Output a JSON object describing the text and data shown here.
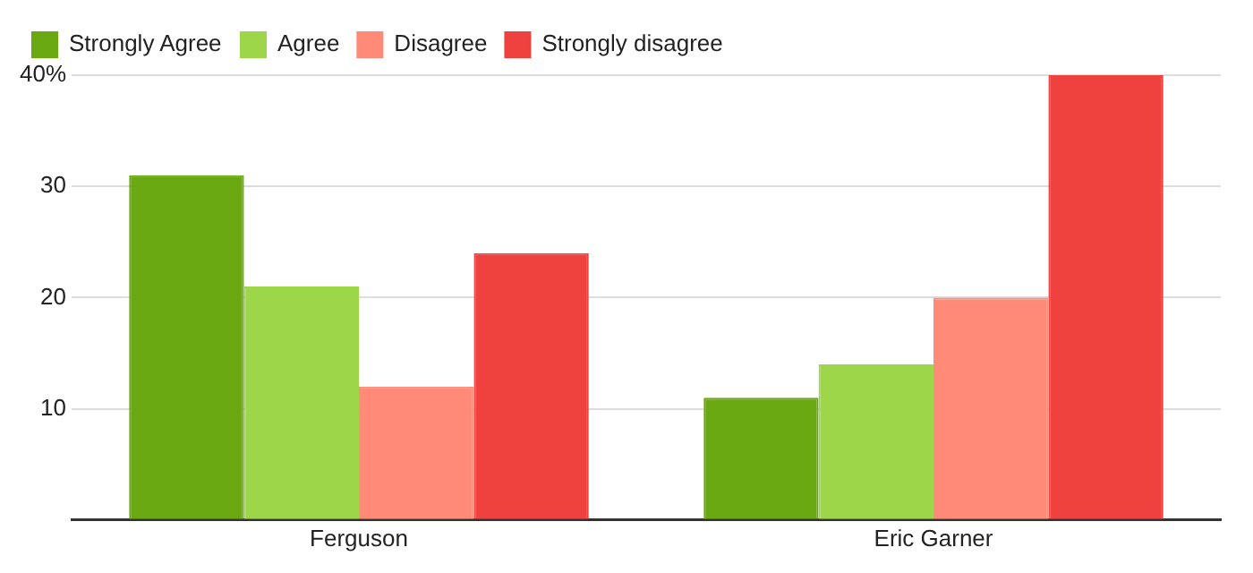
{
  "chart_data": {
    "type": "bar",
    "categories": [
      "Ferguson",
      "Eric Garner"
    ],
    "series": [
      {
        "name": "Strongly Agree",
        "color": "#6aa812",
        "values": [
          31,
          11
        ]
      },
      {
        "name": "Agree",
        "color": "#9ed64a",
        "values": [
          21,
          14
        ]
      },
      {
        "name": "Disagree",
        "color": "#ff8a78",
        "values": [
          12,
          20
        ]
      },
      {
        "name": "Strongly disagree",
        "color": "#ef413d",
        "values": [
          24,
          40
        ]
      }
    ],
    "ylim": [
      0,
      40
    ],
    "yticks": [
      {
        "value": 0,
        "label": null
      },
      10,
      20,
      30,
      {
        "value": 40,
        "label": "40%"
      }
    ],
    "grid": "y",
    "legend": "top left"
  }
}
